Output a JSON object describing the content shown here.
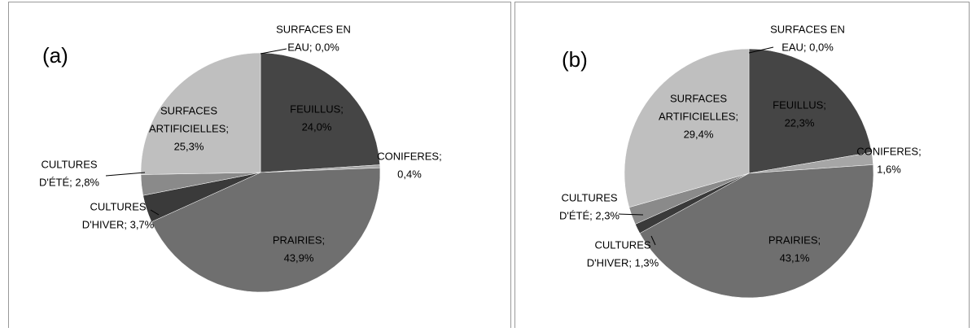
{
  "chart_data": [
    {
      "type": "pie",
      "title": "(a)",
      "values": [
        0.0,
        24.0,
        0.4,
        43.9,
        3.7,
        2.8,
        25.3
      ],
      "value_labels": [
        [
          "SURFACES EN",
          "EAU; 0,0%"
        ],
        [
          "FEUILLUS;",
          "24,0%"
        ],
        [
          "CONIFERES;",
          "0,4%"
        ],
        [
          "PRAIRIES;",
          "43,9%"
        ],
        [
          "CULTURES",
          "D'HIVER; 3,7%"
        ],
        [
          "CULTURES",
          "D'ÉTÉ; 2,8%"
        ],
        [
          "SURFACES",
          "ARTIFICIELLES;",
          "25,3%"
        ]
      ],
      "colors": [
        "#d9d9d9",
        "#454545",
        "#a6a6a6",
        "#6f6f6f",
        "#3a3a3a",
        "#8a8a8a",
        "#bfbfbf"
      ]
    },
    {
      "type": "pie",
      "title": "(b)",
      "values": [
        0.0,
        22.3,
        1.6,
        43.1,
        1.3,
        2.3,
        29.4
      ],
      "value_labels": [
        [
          "SURFACES EN",
          "EAU; 0,0%"
        ],
        [
          "FEUILLUS;",
          "22,3%"
        ],
        [
          "CONIFERES;",
          "1,6%"
        ],
        [
          "PRAIRIES;",
          "43,1%"
        ],
        [
          "CULTURES",
          "D'HIVER; 1,3%"
        ],
        [
          "CULTURES",
          "D'ÉTÉ; 2,3%"
        ],
        [
          "SURFACES",
          "ARTIFICIELLES;",
          "29,4%"
        ]
      ],
      "colors": [
        "#d9d9d9",
        "#454545",
        "#a6a6a6",
        "#6f6f6f",
        "#3a3a3a",
        "#8a8a8a",
        "#bfbfbf"
      ]
    }
  ]
}
